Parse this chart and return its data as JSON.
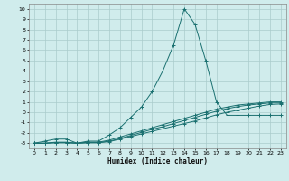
{
  "xlabel": "Humidex (Indice chaleur)",
  "bg_color": "#d0ecec",
  "line_color": "#1a7070",
  "grid_color": "#aacccc",
  "xlim": [
    -0.5,
    23.5
  ],
  "ylim": [
    -3.5,
    10.5
  ],
  "yticks": [
    -3,
    -2,
    -1,
    0,
    1,
    2,
    3,
    4,
    5,
    6,
    7,
    8,
    9,
    10
  ],
  "xticks": [
    0,
    1,
    2,
    3,
    4,
    5,
    6,
    7,
    8,
    9,
    10,
    11,
    12,
    13,
    14,
    15,
    16,
    17,
    18,
    19,
    20,
    21,
    22,
    23
  ],
  "series": [
    {
      "x": [
        0,
        1,
        2,
        3,
        4,
        5,
        6,
        7,
        8,
        9,
        10,
        11,
        12,
        13,
        14,
        15,
        16,
        17,
        18,
        19,
        20,
        21,
        22,
        23
      ],
      "y": [
        -3,
        -2.8,
        -2.6,
        -2.6,
        -3,
        -2.8,
        -2.8,
        -2.2,
        -1.5,
        -0.5,
        0.5,
        2,
        4,
        6.5,
        10,
        8.5,
        5,
        1,
        -0.3,
        -0.3,
        -0.3,
        -0.3,
        -0.3,
        -0.3
      ]
    },
    {
      "x": [
        0,
        1,
        2,
        3,
        4,
        5,
        6,
        7,
        8,
        9,
        10,
        11,
        12,
        13,
        14,
        15,
        16,
        17,
        18,
        19,
        20,
        21,
        22,
        23
      ],
      "y": [
        -3,
        -3,
        -2.9,
        -2.9,
        -3,
        -2.9,
        -2.9,
        -2.7,
        -2.4,
        -2.1,
        -1.8,
        -1.5,
        -1.2,
        -0.9,
        -0.6,
        -0.3,
        0,
        0.3,
        0.5,
        0.7,
        0.8,
        0.9,
        1.0,
        1.0
      ]
    },
    {
      "x": [
        0,
        1,
        2,
        3,
        4,
        5,
        6,
        7,
        8,
        9,
        10,
        11,
        12,
        13,
        14,
        15,
        16,
        17,
        18,
        19,
        20,
        21,
        22,
        23
      ],
      "y": [
        -3,
        -3,
        -2.95,
        -2.95,
        -3,
        -2.95,
        -2.95,
        -2.8,
        -2.55,
        -2.25,
        -1.95,
        -1.65,
        -1.4,
        -1.1,
        -0.8,
        -0.5,
        -0.2,
        0.1,
        0.35,
        0.55,
        0.7,
        0.8,
        0.9,
        0.9
      ]
    },
    {
      "x": [
        0,
        1,
        2,
        3,
        4,
        5,
        6,
        7,
        8,
        9,
        10,
        11,
        12,
        13,
        14,
        15,
        16,
        17,
        18,
        19,
        20,
        21,
        22,
        23
      ],
      "y": [
        -3,
        -3,
        -2.95,
        -2.95,
        -3,
        -2.95,
        -2.95,
        -2.85,
        -2.6,
        -2.35,
        -2.1,
        -1.85,
        -1.6,
        -1.35,
        -1.1,
        -0.85,
        -0.55,
        -0.25,
        0.0,
        0.2,
        0.4,
        0.6,
        0.75,
        0.8
      ]
    }
  ]
}
